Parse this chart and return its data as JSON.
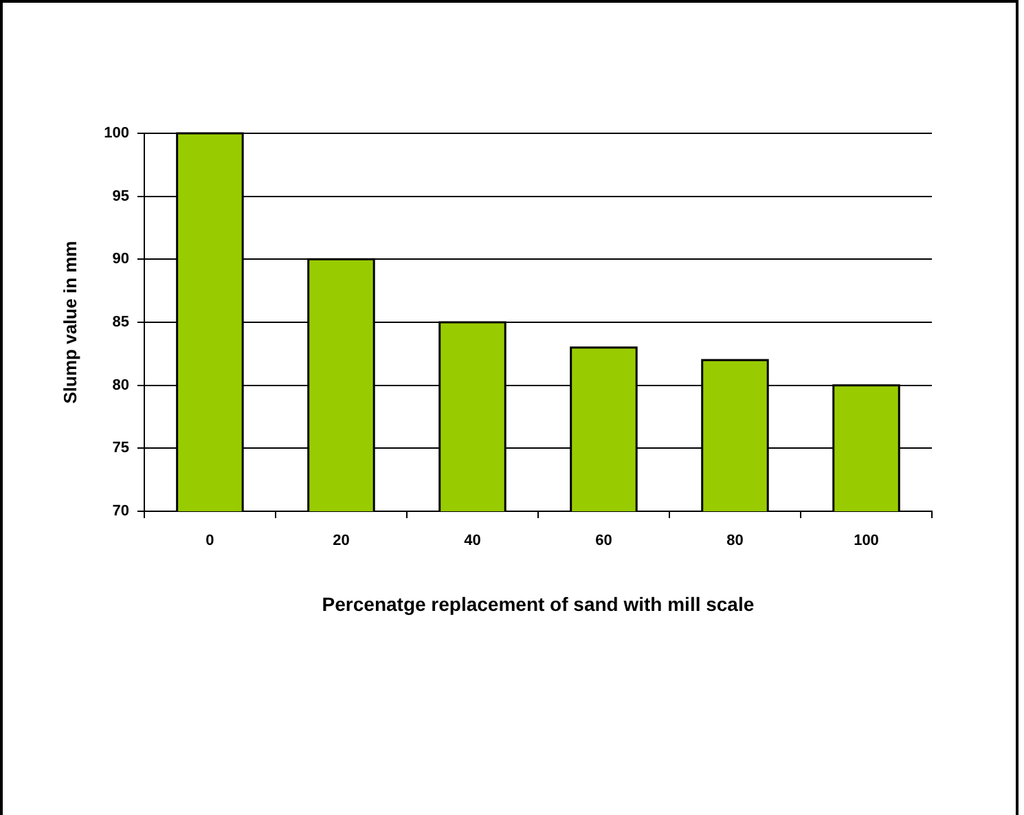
{
  "chart_data": {
    "type": "bar",
    "xlabel": "Percenatge replacement of sand with mill scale",
    "ylabel": "Slump value in mm",
    "categories": [
      "0",
      "20",
      "40",
      "60",
      "80",
      "100"
    ],
    "values": [
      100,
      90,
      85,
      83,
      82,
      80
    ],
    "color": "#99cc00",
    "ylim": [
      70,
      100
    ],
    "yticks": [
      70,
      75,
      80,
      85,
      90,
      95,
      100
    ],
    "grid": "y",
    "legend": false
  }
}
